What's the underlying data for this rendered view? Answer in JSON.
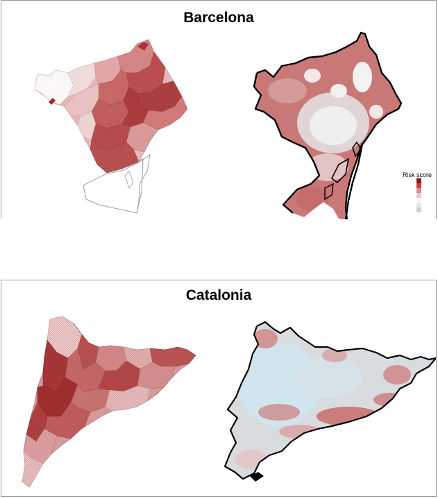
{
  "panels": [
    {
      "title": "Barcelona"
    },
    {
      "title": "Catalonia"
    }
  ],
  "legend": {
    "title": "Risk score",
    "colors": [
      "#8b1a1a",
      "#b84444",
      "#d98e8e",
      "#eecaca",
      "#f6f6f6",
      "#e6e6e6",
      "#cfcfcf"
    ]
  },
  "colors": {
    "choropleth_dark": "#a52a2a",
    "choropleth_light": "#f7e4e4",
    "smooth_high": "#c46a6a",
    "smooth_low_grey": "#e8e8e8",
    "smooth_low_blue": "#cfe6ee",
    "outline": "#000000"
  }
}
